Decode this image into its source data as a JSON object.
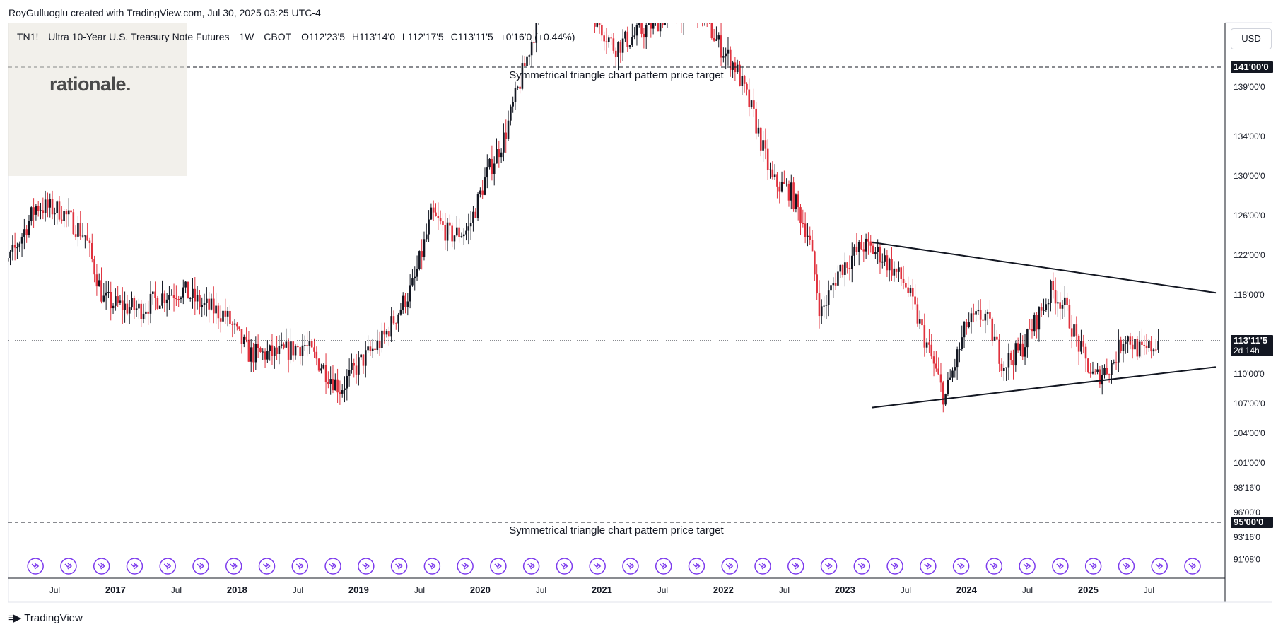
{
  "header": {
    "credit": "RoyGulluoglu created with TradingView.com, Jul 30, 2025 03:25 UTC-4"
  },
  "symbol_bar": {
    "ticker": "TN1!",
    "name": "Ultra 10-Year U.S. Treasury Note Futures",
    "interval": "1W",
    "exchange": "CBOT",
    "open": "O112'23'5",
    "high": "H113'14'0",
    "low": "L112'17'5",
    "close": "C113'11'5",
    "change": "+0'16'0 (+0.44%)"
  },
  "logo": {
    "text": "rationale."
  },
  "currency": {
    "label": "USD"
  },
  "footer": {
    "brand": "TradingView"
  },
  "colors": {
    "up": "#131722",
    "down": "#e0313d",
    "dashed": "#131722",
    "event_icon": "#7c3aed",
    "price_tag_bg": "#131722"
  },
  "chart_data": {
    "type": "candlestick",
    "title": "",
    "xlabel": "",
    "ylabel": "",
    "ylim": [
      89.5,
      145.5
    ],
    "x_ticks": [
      "Jul",
      "2017",
      "Jul",
      "2018",
      "Jul",
      "2019",
      "Jul",
      "2020",
      "Jul",
      "2021",
      "Jul",
      "2022",
      "Jul",
      "2023",
      "Jul",
      "2024",
      "Jul",
      "2025",
      "Jul"
    ],
    "x_tick_positions": [
      2016.5,
      2017.0,
      2017.5,
      2018.0,
      2018.5,
      2019.0,
      2019.5,
      2020.0,
      2020.5,
      2021.0,
      2021.5,
      2022.0,
      2022.5,
      2023.0,
      2023.5,
      2024.0,
      2024.5,
      2025.0,
      2025.5
    ],
    "y_ticks": [
      {
        "value": 139.0,
        "label": "139'00'0"
      },
      {
        "value": 134.0,
        "label": "134'00'0"
      },
      {
        "value": 130.0,
        "label": "130'00'0"
      },
      {
        "value": 126.0,
        "label": "126'00'0"
      },
      {
        "value": 122.0,
        "label": "122'00'0"
      },
      {
        "value": 118.0,
        "label": "118'00'0"
      },
      {
        "value": 110.0,
        "label": "110'00'0"
      },
      {
        "value": 107.0,
        "label": "107'00'0"
      },
      {
        "value": 104.0,
        "label": "104'00'0"
      },
      {
        "value": 101.0,
        "label": "101'00'0"
      },
      {
        "value": 98.5,
        "label": "98'16'0"
      },
      {
        "value": 96.0,
        "label": "96'00'0"
      },
      {
        "value": 93.5,
        "label": "93'16'0"
      },
      {
        "value": 91.25,
        "label": "91'08'0"
      }
    ],
    "price_tags": [
      {
        "value": 141.0,
        "label": "141'00'0"
      },
      {
        "value": 113.36,
        "label": "113'11'5",
        "sub": "2d 14h"
      },
      {
        "value": 95.0,
        "label": "95'00'0"
      }
    ],
    "current_price": 113.36,
    "horizontal_lines": [
      {
        "value": 141.0,
        "label": "Symmetrical triangle chart pattern price target",
        "label_position": "below"
      },
      {
        "value": 95.0,
        "label": "Symmetrical triangle chart pattern price target",
        "label_position": "below"
      }
    ],
    "trendlines": [
      {
        "name": "upper",
        "start": [
          2023.22,
          123.3
        ],
        "end": [
          2026.05,
          118.2
        ]
      },
      {
        "name": "lower",
        "start": [
          2023.22,
          106.6
        ],
        "end": [
          2026.05,
          110.7
        ]
      }
    ],
    "price_path": [
      [
        2016.0,
        119.0
      ],
      [
        2016.15,
        122.0
      ],
      [
        2016.35,
        127.0
      ],
      [
        2016.55,
        126.5
      ],
      [
        2016.75,
        124.0
      ],
      [
        2016.9,
        117.5
      ],
      [
        2017.0,
        117.0
      ],
      [
        2017.2,
        116.5
      ],
      [
        2017.4,
        118.0
      ],
      [
        2017.55,
        118.5
      ],
      [
        2017.7,
        117.0
      ],
      [
        2017.9,
        116.0
      ],
      [
        2018.1,
        112.0
      ],
      [
        2018.35,
        112.0
      ],
      [
        2018.55,
        113.0
      ],
      [
        2018.85,
        108.5
      ],
      [
        2019.0,
        111.0
      ],
      [
        2019.2,
        113.5
      ],
      [
        2019.45,
        119.0
      ],
      [
        2019.6,
        126.0
      ],
      [
        2019.75,
        124.0
      ],
      [
        2019.9,
        124.5
      ],
      [
        2020.05,
        130.0
      ],
      [
        2020.2,
        134.0
      ],
      [
        2020.5,
        147.0
      ],
      [
        2020.85,
        148.0
      ],
      [
        2021.1,
        143.0
      ],
      [
        2021.25,
        144.0
      ],
      [
        2021.5,
        146.0
      ],
      [
        2021.8,
        147.0
      ],
      [
        2021.95,
        143.5
      ],
      [
        2022.1,
        141.0
      ],
      [
        2022.25,
        136.0
      ],
      [
        2022.4,
        129.5
      ],
      [
        2022.55,
        128.5
      ],
      [
        2022.7,
        124.0
      ],
      [
        2022.8,
        116.0
      ],
      [
        2022.95,
        120.5
      ],
      [
        2023.15,
        123.0
      ],
      [
        2023.3,
        122.0
      ],
      [
        2023.5,
        119.0
      ],
      [
        2023.7,
        112.0
      ],
      [
        2023.82,
        107.5
      ],
      [
        2024.0,
        115.0
      ],
      [
        2024.15,
        116.0
      ],
      [
        2024.3,
        111.0
      ],
      [
        2024.45,
        112.5
      ],
      [
        2024.7,
        118.5
      ],
      [
        2024.8,
        117.0
      ],
      [
        2024.95,
        112.0
      ],
      [
        2025.05,
        109.5
      ],
      [
        2025.2,
        111.0
      ],
      [
        2025.3,
        114.0
      ],
      [
        2025.45,
        112.0
      ],
      [
        2025.58,
        113.36
      ]
    ],
    "event_icon_count": 38
  }
}
